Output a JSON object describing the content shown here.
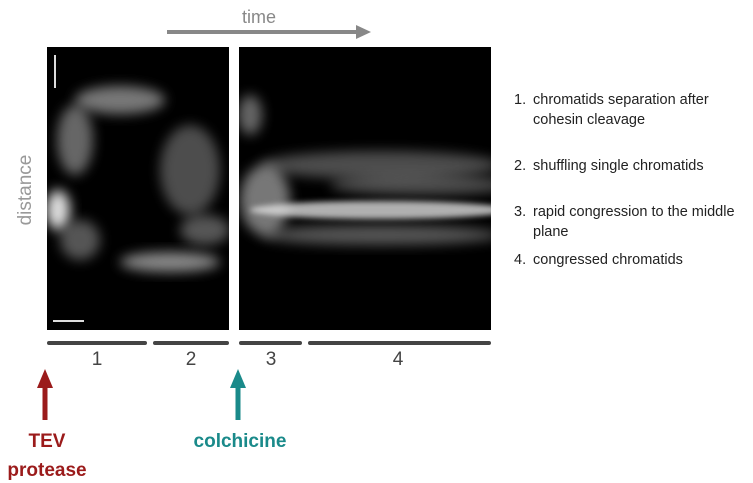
{
  "header": {
    "time_label": "time",
    "distance_label": "distance"
  },
  "phases": [
    "1",
    "2",
    "3",
    "4"
  ],
  "treatments": {
    "tev": [
      "TEV",
      "protease"
    ],
    "colchicine": "colchicine"
  },
  "legend": [
    {
      "number": "1.",
      "text": "chromatids separation after cohesin cleavage"
    },
    {
      "number": "2.",
      "text": "shuffling single chromatids"
    },
    {
      "number": "3.",
      "text": "rapid congression to the middle plane"
    },
    {
      "number": "4.",
      "text": "congressed chromatids"
    }
  ]
}
